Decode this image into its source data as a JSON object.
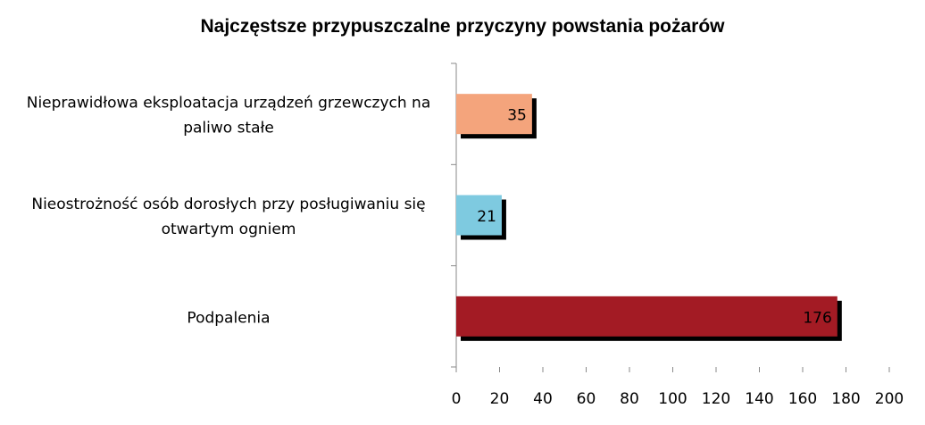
{
  "chart_data": {
    "type": "bar",
    "orientation": "horizontal",
    "title": "Najczęstsze przypuszczalne przyczyny powstania pożarów",
    "xlabel": "",
    "ylabel": "",
    "categories": [
      [
        "Nieprawidłowa eksploatacja urządzeń grzewczych na",
        "paliwo stałe"
      ],
      [
        "Nieostrożność osób dorosłych przy posługiwaniu się",
        "otwartym ogniem"
      ],
      [
        "Podpalenia"
      ]
    ],
    "values": [
      35,
      21,
      176
    ],
    "colors": [
      "#F4A47C",
      "#7ECAE0",
      "#A31B24"
    ],
    "data_labels": [
      "35",
      "21",
      "176"
    ],
    "xlim": [
      0,
      200
    ],
    "xticks": [
      0,
      20,
      40,
      60,
      80,
      100,
      120,
      140,
      160,
      180,
      200
    ],
    "grid": false,
    "legend": "none"
  }
}
